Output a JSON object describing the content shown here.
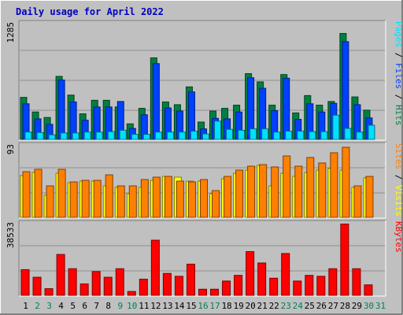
{
  "chart_data": {
    "type": "bar",
    "title": "Daily usage for April 2022",
    "categories": [
      "1",
      "2",
      "3",
      "4",
      "5",
      "6",
      "7",
      "8",
      "9",
      "10",
      "11",
      "12",
      "13",
      "14",
      "15",
      "16",
      "17",
      "18",
      "19",
      "20",
      "21",
      "22",
      "23",
      "24",
      "25",
      "26",
      "27",
      "28",
      "29",
      "30",
      "31"
    ],
    "weekend_days": [
      "2",
      "3",
      "9",
      "10",
      "16",
      "17",
      "23",
      "24",
      "30",
      "31"
    ],
    "panels": [
      {
        "name": "hits-files-pages",
        "ymax": 1285,
        "ymax_label": "1285",
        "series": [
          {
            "name": "Hits",
            "color": "#008040",
            "values": [
              460,
              300,
              240,
              690,
              485,
              280,
              428,
              428,
              355,
              170,
              340,
              893,
              410,
              380,
              575,
              190,
              310,
              340,
              375,
              720,
              630,
              375,
              710,
              290,
              480,
              375,
              415,
              1160,
              465,
              320,
              0
            ]
          },
          {
            "name": "Files",
            "color": "#0040ff",
            "values": [
              390,
              225,
              165,
              650,
              410,
              210,
              355,
              355,
              415,
              120,
              270,
              830,
              345,
              310,
              520,
              115,
              230,
              225,
              300,
              675,
              560,
              315,
              670,
              220,
              390,
              300,
              395,
              1070,
              380,
              235,
              0
            ]
          },
          {
            "name": "Pages",
            "color": "#00e0ff",
            "values": [
              80,
              75,
              50,
              70,
              70,
              80,
              80,
              85,
              100,
              55,
              55,
              80,
              80,
              80,
              90,
              60,
              200,
              110,
              100,
              115,
              115,
              80,
              90,
              90,
              85,
              85,
              265,
              120,
              80,
              155,
              0
            ]
          }
        ],
        "axis_label_parts": [
          {
            "text": "Pages",
            "color": "#00e0ff"
          },
          {
            "text": " / ",
            "color": "#000000"
          },
          {
            "text": "Files",
            "color": "#0040ff"
          },
          {
            "text": " / ",
            "color": "#000000"
          },
          {
            "text": "Hits",
            "color": "#008040"
          }
        ]
      },
      {
        "name": "visits-sites",
        "ymax": 93,
        "ymax_label": "93",
        "series": [
          {
            "name": "Visits",
            "color": "#ffff00",
            "values": [
              53,
              57,
              28,
              56,
              44,
              46,
              46,
              40,
              38,
              30,
              38,
              47,
              52,
              51,
              46,
              46,
              30,
              49,
              56,
              60,
              66,
              40,
              56,
              52,
              57,
              60,
              62,
              60,
              38,
              50,
              0
            ]
          },
          {
            "name": "Sites",
            "color": "#ff8000",
            "values": [
              58,
              61,
              40,
              61,
              45,
              47,
              47,
              54,
              40,
              40,
              48,
              51,
              52,
              46,
              45,
              48,
              34,
              52,
              60,
              65,
              67,
              64,
              78,
              65,
              76,
              69,
              82,
              89,
              40,
              52,
              0
            ]
          }
        ],
        "axis_label_parts": [
          {
            "text": "Sites",
            "color": "#ff8000"
          },
          {
            "text": " / ",
            "color": "#000000"
          },
          {
            "text": "Visits",
            "color": "#ffff00"
          }
        ]
      },
      {
        "name": "kbytes",
        "ymax": 38533,
        "ymax_label": "38533",
        "series": [
          {
            "name": "KBytes",
            "color": "#ff0000",
            "values": [
              13500,
              9500,
              3500,
              21500,
              14000,
              6000,
              12500,
              9500,
              14000,
              2000,
              8500,
              29000,
              11500,
              10000,
              16400,
              3200,
              3200,
              7500,
              10500,
              23000,
              17000,
              9000,
              22000,
              7500,
              10500,
              10000,
              14000,
              37500,
              14000,
              5500,
              0
            ]
          }
        ],
        "axis_label_parts": [
          {
            "text": "KBytes",
            "color": "#ff0000"
          }
        ]
      }
    ]
  }
}
